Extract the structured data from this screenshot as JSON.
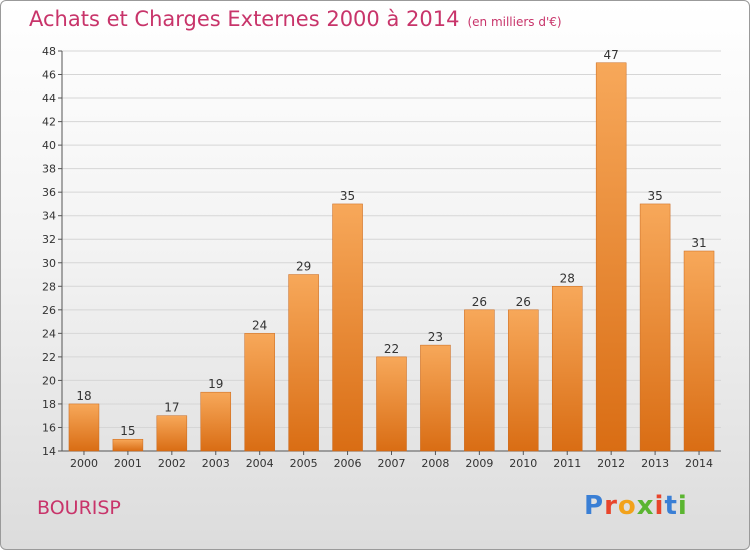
{
  "title": "Achats et Charges Externes 2000 à 2014",
  "unit_note": "(en milliers d'€)",
  "place_name": "BOURISP",
  "logo": {
    "text": "Proxiti",
    "letter_colors": [
      "#3a7fd5",
      "#e8452c",
      "#f2a21b",
      "#5bb531",
      "#e8452c",
      "#3a7fd5",
      "#5bb531"
    ]
  },
  "colors": {
    "bar_top": "#f7a85a",
    "bar_bottom": "#d96d14",
    "bar_stroke": "#c8661a",
    "grid": "#d6d6d6",
    "title": "#c8346a"
  },
  "chart_data": {
    "type": "bar",
    "title": "Achats et Charges Externes 2000 à 2014",
    "subtitle": "(en milliers d'€)",
    "xlabel": "",
    "ylabel": "",
    "categories": [
      "2000",
      "2001",
      "2002",
      "2003",
      "2004",
      "2005",
      "2006",
      "2007",
      "2008",
      "2009",
      "2010",
      "2011",
      "2012",
      "2013",
      "2014"
    ],
    "values": [
      18,
      15,
      17,
      19,
      24,
      29,
      35,
      22,
      23,
      26,
      26,
      28,
      47,
      35,
      31
    ],
    "ylim": [
      14,
      48
    ],
    "yticks": [
      14,
      16,
      18,
      20,
      22,
      24,
      26,
      28,
      30,
      32,
      34,
      36,
      38,
      40,
      42,
      44,
      46,
      48
    ],
    "grid": true,
    "data_labels": true
  }
}
